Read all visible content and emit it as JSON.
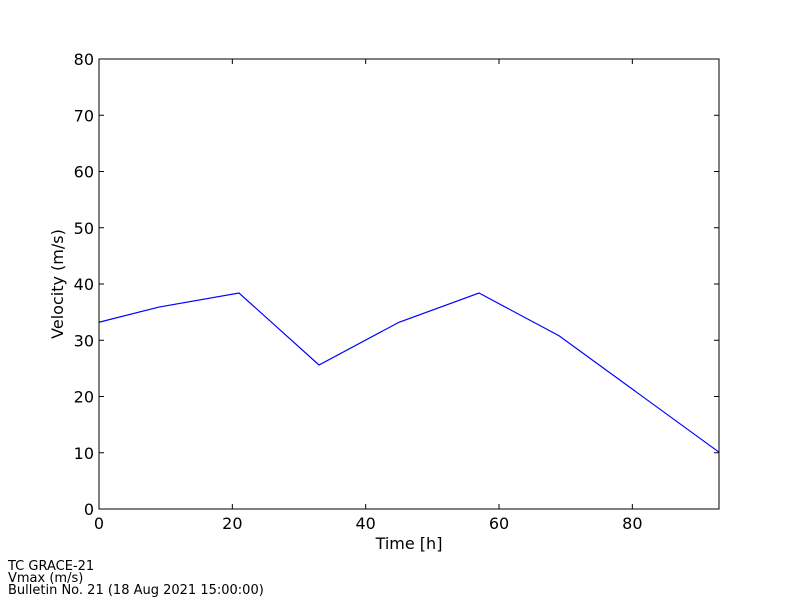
{
  "chart_data": {
    "type": "line",
    "x_label": "Time [h]",
    "y_label": "Velocity (m/s)",
    "x": [
      0,
      9,
      21,
      33,
      45,
      57,
      69,
      93
    ],
    "series": [
      {
        "name": "Vmax",
        "color": "#0000ff",
        "values": [
          33.2,
          35.9,
          38.4,
          25.6,
          33.2,
          38.4,
          30.8,
          10.1
        ]
      }
    ],
    "xlim": [
      0,
      93
    ],
    "xticks": [
      0,
      20,
      40,
      60,
      80
    ],
    "ylim": [
      0,
      80
    ],
    "yticks": [
      0,
      10,
      20,
      30,
      40,
      50,
      60,
      70,
      80
    ],
    "grid": false,
    "annotations": [
      "TC GRACE-21",
      "Vmax (m/s)",
      "Bulletin No. 21 (18 Aug 2021  15:00:00)"
    ]
  }
}
